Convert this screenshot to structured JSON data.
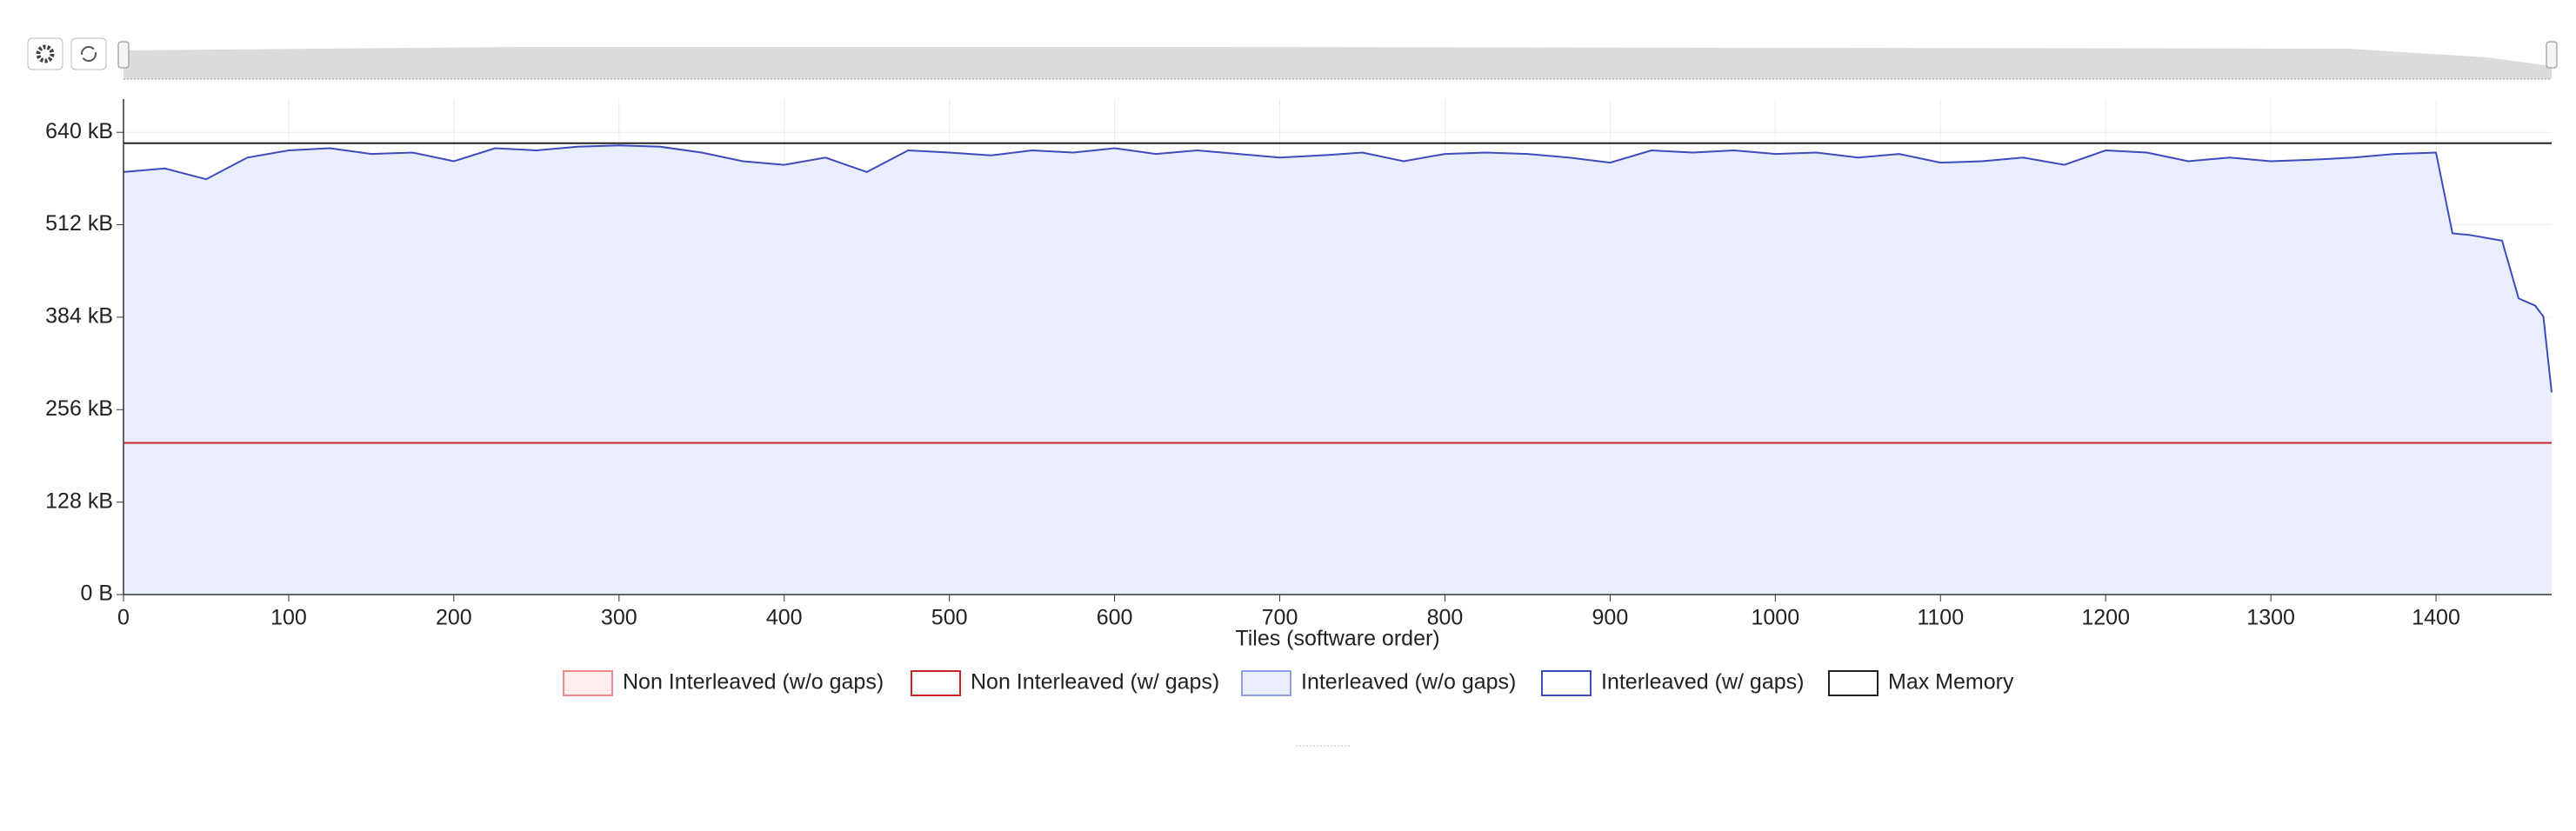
{
  "chart_data": {
    "type": "line",
    "x_label": "Tiles  (software order)",
    "x": [
      0,
      25,
      50,
      75,
      100,
      125,
      150,
      175,
      200,
      225,
      250,
      275,
      300,
      325,
      350,
      375,
      400,
      425,
      450,
      475,
      500,
      525,
      550,
      575,
      600,
      625,
      650,
      675,
      700,
      725,
      750,
      775,
      800,
      825,
      850,
      875,
      900,
      925,
      950,
      975,
      1000,
      1025,
      1050,
      1075,
      1100,
      1125,
      1150,
      1175,
      1200,
      1225,
      1250,
      1275,
      1300,
      1325,
      1350,
      1375,
      1400,
      1410,
      1420,
      1440,
      1450,
      1460,
      1465,
      1470
    ],
    "xlim": [
      0,
      1470
    ],
    "xticks": [
      0,
      100,
      200,
      300,
      400,
      500,
      600,
      700,
      800,
      900,
      1000,
      1100,
      1200,
      1300,
      1400
    ],
    "ylim": [
      0,
      686
    ],
    "yticks": [
      {
        "value": 0,
        "label": "0 B"
      },
      {
        "value": 128,
        "label": "128 kB"
      },
      {
        "value": 256,
        "label": "256 kB"
      },
      {
        "value": 384,
        "label": "384 kB"
      },
      {
        "value": 512,
        "label": "512 kB"
      },
      {
        "value": 640,
        "label": "640 kB"
      }
    ],
    "grid": true,
    "legend": "bottom",
    "series": [
      {
        "name": "Non Interleaved (w/o gaps)",
        "kind": "area",
        "color": "#f08a8a",
        "fill": "#fdeeee",
        "values": [
          210,
          210,
          210,
          210,
          210,
          210,
          210,
          210,
          210,
          210,
          210,
          210,
          210,
          210,
          210,
          210,
          210,
          210,
          210,
          210,
          210,
          210,
          210,
          210,
          210,
          210,
          210,
          210,
          210,
          210,
          210,
          210,
          210,
          210,
          210,
          210,
          210,
          210,
          210,
          210,
          210,
          210,
          210,
          210,
          210,
          210,
          210,
          210,
          210,
          210,
          210,
          210,
          210,
          210,
          210,
          210,
          210,
          210,
          210,
          210,
          210,
          210,
          210,
          210
        ]
      },
      {
        "name": "Non Interleaved (w/ gaps)",
        "kind": "line",
        "color": "#c8262b",
        "values": [
          210,
          210,
          210,
          210,
          210,
          210,
          210,
          210,
          210,
          210,
          210,
          210,
          210,
          210,
          210,
          210,
          210,
          210,
          210,
          210,
          210,
          210,
          210,
          210,
          210,
          210,
          210,
          210,
          210,
          210,
          210,
          210,
          210,
          210,
          210,
          210,
          210,
          210,
          210,
          210,
          210,
          210,
          210,
          210,
          210,
          210,
          210,
          210,
          210,
          210,
          210,
          210,
          210,
          210,
          210,
          210,
          210,
          210,
          210,
          210,
          210,
          210,
          210,
          210
        ]
      },
      {
        "name": "Interleaved (w/o gaps)",
        "kind": "area",
        "color": "#8f9fe8",
        "fill": "#eaeefc",
        "values": [
          585,
          590,
          575,
          605,
          615,
          618,
          610,
          612,
          600,
          618,
          615,
          620,
          622,
          620,
          612,
          600,
          595,
          605,
          585,
          615,
          612,
          608,
          615,
          612,
          618,
          610,
          615,
          610,
          605,
          608,
          612,
          600,
          610,
          612,
          610,
          605,
          598,
          615,
          612,
          615,
          610,
          612,
          605,
          610,
          598,
          600,
          605,
          595,
          615,
          612,
          600,
          605,
          600,
          602,
          605,
          610,
          612,
          500,
          498,
          490,
          410,
          400,
          385,
          280
        ]
      },
      {
        "name": "Interleaved (w/ gaps)",
        "kind": "line",
        "color": "#3d4bbd",
        "values": [
          585,
          590,
          575,
          605,
          615,
          618,
          610,
          612,
          600,
          618,
          615,
          620,
          622,
          620,
          612,
          600,
          595,
          605,
          585,
          615,
          612,
          608,
          615,
          612,
          618,
          610,
          615,
          610,
          605,
          608,
          612,
          600,
          610,
          612,
          610,
          605,
          598,
          615,
          612,
          615,
          610,
          612,
          605,
          610,
          598,
          600,
          605,
          595,
          615,
          612,
          600,
          605,
          600,
          602,
          605,
          610,
          612,
          500,
          498,
          490,
          410,
          400,
          385,
          280
        ]
      },
      {
        "name": "Max Memory",
        "kind": "line",
        "color": "#222222",
        "values": [
          625,
          625,
          625,
          625,
          625,
          625,
          625,
          625,
          625,
          625,
          625,
          625,
          625,
          625,
          625,
          625,
          625,
          625,
          625,
          625,
          625,
          625,
          625,
          625,
          625,
          625,
          625,
          625,
          625,
          625,
          625,
          625,
          625,
          625,
          625,
          625,
          625,
          625,
          625,
          625,
          625,
          625,
          625,
          625,
          625,
          625,
          625,
          625,
          625,
          625,
          625,
          625,
          625,
          625,
          625,
          625,
          625,
          625,
          625,
          625,
          625,
          625,
          625,
          625
        ]
      }
    ]
  }
}
